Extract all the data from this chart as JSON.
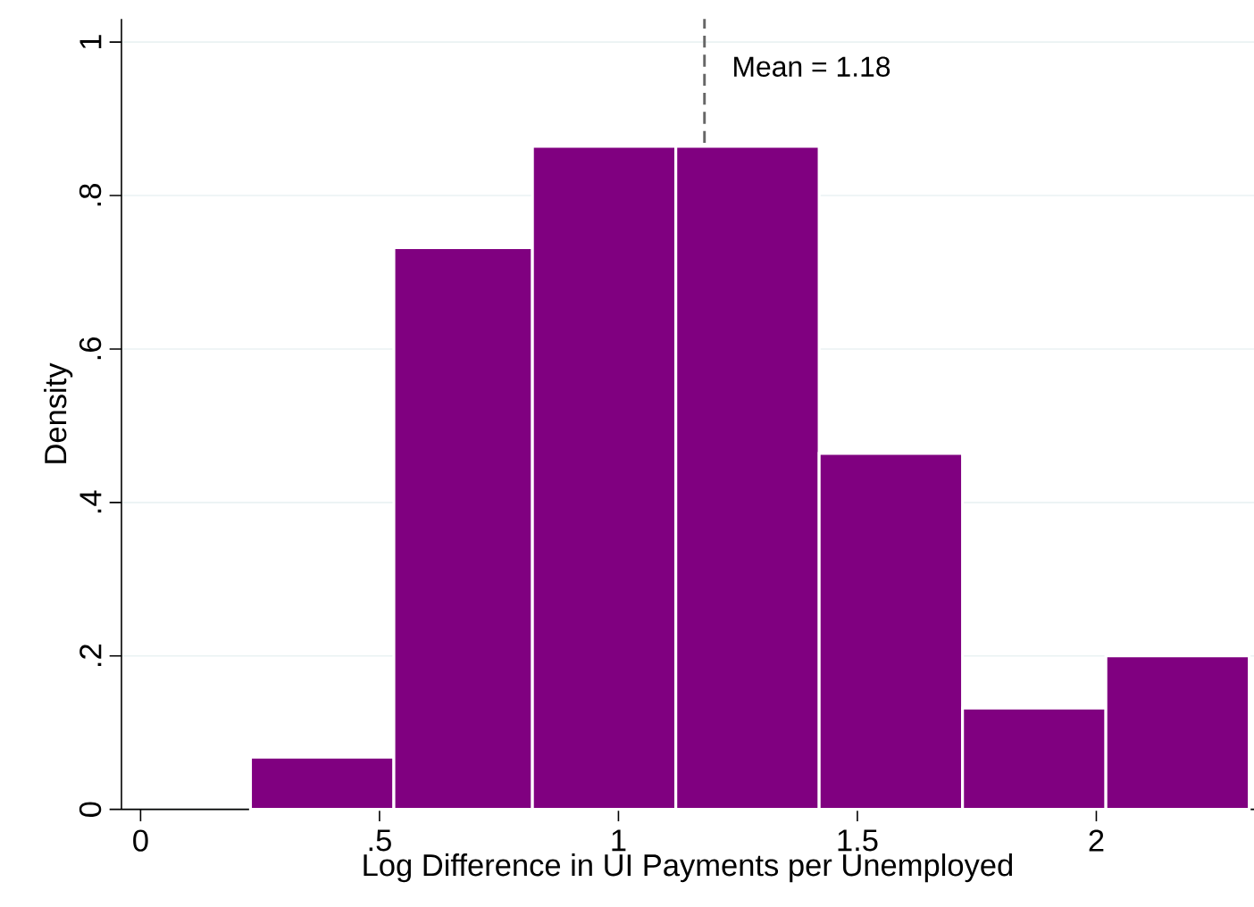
{
  "chart_data": {
    "type": "histogram",
    "xlabel": "Log Difference in UI Payments per Unemployed",
    "ylabel": "Density",
    "bins": [
      0.23,
      0.53,
      0.82,
      1.12,
      1.42,
      1.72,
      2.02,
      2.32
    ],
    "values": [
      0.068,
      0.732,
      0.864,
      0.864,
      0.464,
      0.132,
      0.2
    ],
    "color": "#800080",
    "xlim": [
      -0.04,
      2.33
    ],
    "ylim": [
      0,
      1.03
    ],
    "xticks": [
      0,
      {
        "value": 0.5,
        "label": ".5"
      },
      1,
      {
        "value": 1.5,
        "label": "1.5"
      },
      2
    ],
    "yticks": [
      0,
      {
        "value": 0.2,
        "label": ".2"
      },
      {
        "value": 0.4,
        "label": ".4"
      },
      {
        "value": 0.6,
        "label": ".6"
      },
      {
        "value": 0.8,
        "label": ".8"
      },
      1
    ],
    "grid": "y",
    "ref_lines": [
      {
        "axis": "x",
        "value": 1.18,
        "label": "Mean = 1.18",
        "color": "#666666",
        "line_style": "dashed"
      }
    ]
  }
}
